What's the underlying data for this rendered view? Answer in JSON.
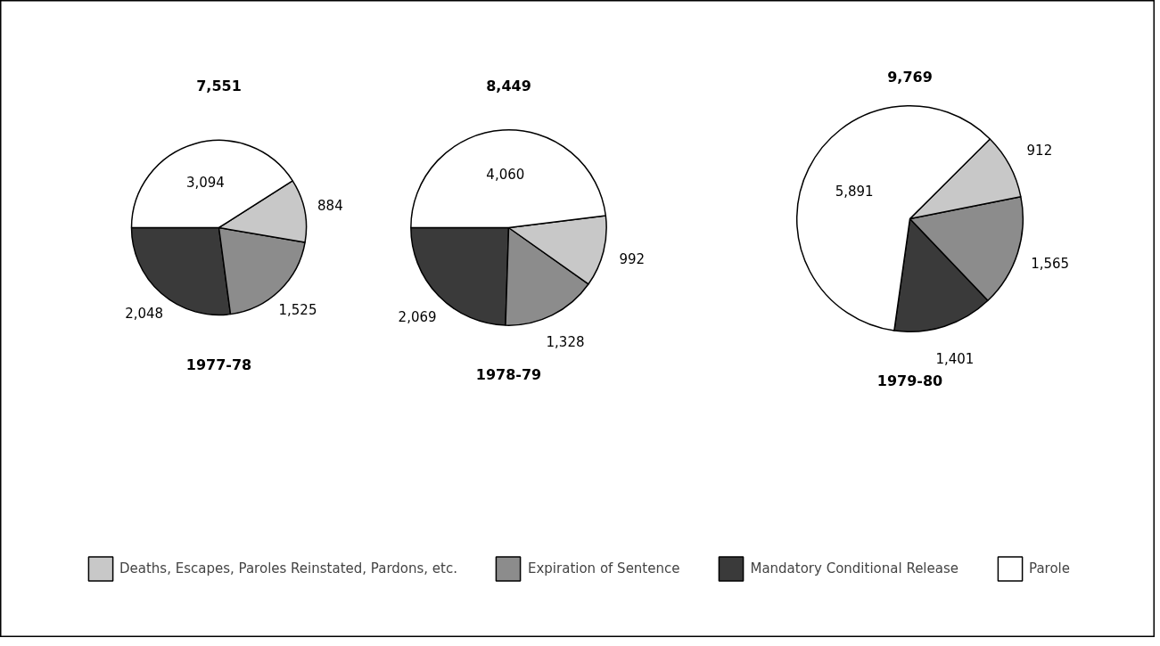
{
  "chart_data": [
    {
      "type": "pie",
      "title": "7,551",
      "subtitle": "1977-78",
      "categories": [
        "Deaths, Escapes, Paroles Reinstated, Pardons, etc.",
        "Expiration of Sentence",
        "Mandatory Conditional Release",
        "Parole"
      ],
      "values": [
        884,
        1525,
        2048,
        3094
      ],
      "value_labels": [
        "884",
        "1,525",
        "2,048",
        "3,094"
      ],
      "colors": [
        "#c8c8c8",
        "#8c8c8c",
        "#3a3a3a",
        "#ffffff"
      ],
      "legend": "bottom"
    },
    {
      "type": "pie",
      "title": "8,449",
      "subtitle": "1978-79",
      "categories": [
        null,
        null,
        null,
        null
      ],
      "values": [
        992,
        1328,
        2069,
        4060
      ],
      "value_labels": [
        "992",
        "1,328",
        "2,069",
        "4,060"
      ],
      "colors": [
        "#c8c8c8",
        "#8c8c8c",
        "#3a3a3a",
        "#ffffff"
      ]
    },
    {
      "type": "pie",
      "title": "9,769",
      "subtitle": "1979-80",
      "categories": [
        null,
        null,
        null,
        null
      ],
      "values": [
        912,
        1565,
        1401,
        5891
      ],
      "value_labels": [
        "912",
        "1,565",
        "1,401",
        "5,891"
      ],
      "colors": [
        "#c8c8c8",
        "#8c8c8c",
        "#3a3a3a",
        "#ffffff"
      ]
    }
  ]
}
